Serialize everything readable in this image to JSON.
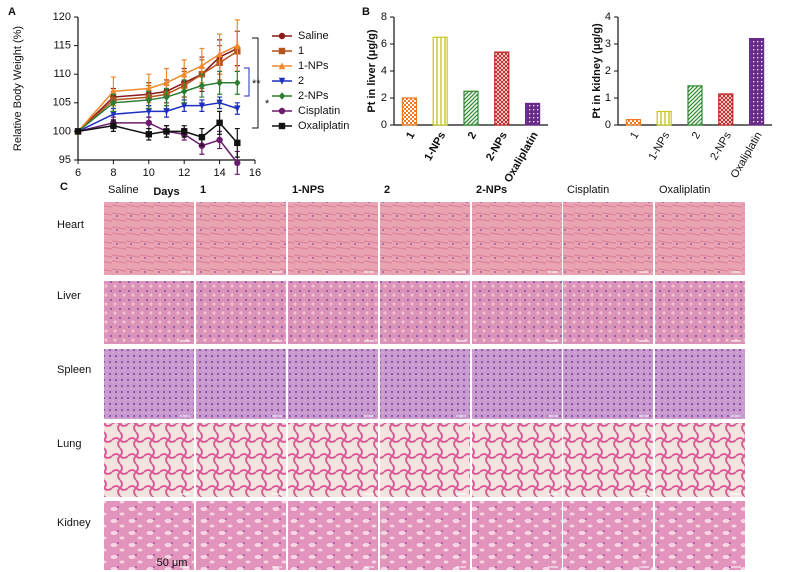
{
  "panel_labels": [
    "A",
    "B",
    "C"
  ],
  "chart_data": [
    {
      "type": "line",
      "xlabel": "Days",
      "ylabel": "Relative Body Weight (%)",
      "x": [
        6,
        8,
        10,
        11,
        12,
        13,
        14,
        15
      ],
      "xlim": [
        6,
        16
      ],
      "xticks": [
        6,
        8,
        10,
        12,
        14,
        16
      ],
      "ylim": [
        95,
        120
      ],
      "yticks": [
        95,
        100,
        105,
        110,
        115,
        120
      ],
      "series": [
        {
          "name": "Saline",
          "color": "#8b1a1a",
          "marker": "circle",
          "values": [
            100,
            106,
            106.5,
            107,
            108.5,
            110,
            113,
            114.5
          ],
          "errors": [
            0,
            1.5,
            2,
            2,
            2.5,
            3,
            3,
            3
          ]
        },
        {
          "name": "1",
          "color": "#b5541c",
          "marker": "square",
          "values": [
            100,
            105.5,
            106,
            106.5,
            108,
            110,
            112,
            114
          ],
          "errors": [
            0,
            1.5,
            2,
            2,
            2.5,
            2.5,
            3,
            3.5
          ]
        },
        {
          "name": "1-NPs",
          "color": "#f08a2a",
          "marker": "triangle-up",
          "values": [
            100,
            107,
            107.5,
            108.5,
            110,
            111.5,
            113.5,
            115
          ],
          "errors": [
            0,
            2.5,
            2.5,
            2.5,
            2.5,
            3,
            3.5,
            4.5
          ]
        },
        {
          "name": "2",
          "color": "#1f2fbf",
          "marker": "triangle-down",
          "values": [
            100,
            103,
            103.5,
            103.5,
            104.5,
            104.5,
            105,
            104
          ],
          "errors": [
            0,
            1,
            1,
            1,
            1,
            1,
            1,
            1
          ]
        },
        {
          "name": "2-NPs",
          "color": "#2e7d32",
          "marker": "diamond",
          "values": [
            100,
            105,
            105.5,
            106,
            107,
            108,
            108.5,
            108.5
          ],
          "errors": [
            0,
            1.5,
            1.5,
            1.5,
            2,
            2,
            2,
            2
          ]
        },
        {
          "name": "Cisplatin",
          "color": "#6a1b6a",
          "marker": "circle",
          "values": [
            100,
            101.5,
            101.5,
            100,
            99.5,
            97.5,
            98.5,
            94.5
          ],
          "errors": [
            0,
            1,
            1,
            1,
            1,
            1.5,
            1.5,
            2
          ]
        },
        {
          "name": "Oxaliplatin",
          "color": "#111111",
          "marker": "square",
          "values": [
            100,
            101,
            99.5,
            100,
            100,
            99,
            101.5,
            98
          ],
          "errors": [
            0,
            1,
            1,
            1,
            1,
            1.5,
            2,
            2.5
          ]
        }
      ],
      "annotations": [
        {
          "text": "**",
          "color": "#1f2fbf"
        },
        {
          "text": "*",
          "color": "#111111"
        }
      ]
    },
    {
      "type": "bar",
      "ylabel": "Pt in liver (μg/g)",
      "categories": [
        "1",
        "1-NPs",
        "2",
        "2-NPs",
        "Oxaliplatin"
      ],
      "values": [
        2.0,
        6.5,
        2.5,
        5.4,
        1.6
      ],
      "colors": [
        "#f07820",
        "#c8c820",
        "#2e8b2e",
        "#c02020",
        "#6a2a8a"
      ],
      "hatches": [
        "checker",
        "vertical",
        "diagonal",
        "cross",
        "dense"
      ],
      "ylim": [
        0,
        8
      ],
      "yticks": [
        0,
        2,
        4,
        6,
        8
      ],
      "label_weight": "bold"
    },
    {
      "type": "bar",
      "ylabel": "Pt in kidney (μg/g)",
      "categories": [
        "1",
        "1-NPs",
        "2",
        "2-NPs",
        "Oxaliplatin"
      ],
      "values": [
        0.2,
        0.5,
        1.45,
        1.15,
        3.2
      ],
      "colors": [
        "#f07820",
        "#c8c820",
        "#2e8b2e",
        "#c02020",
        "#6a2a8a"
      ],
      "hatches": [
        "checker",
        "vertical",
        "diagonal",
        "cross",
        "dense"
      ],
      "ylim": [
        0,
        4
      ],
      "yticks": [
        0,
        1,
        2,
        3,
        4
      ],
      "label_weight": "normal"
    }
  ],
  "histology": {
    "columns": [
      {
        "label": "Saline",
        "bold": false
      },
      {
        "label": "1",
        "bold": true
      },
      {
        "label": "1-NPS",
        "bold": true
      },
      {
        "label": "2",
        "bold": true
      },
      {
        "label": "2-NPs",
        "bold": true
      },
      {
        "label": "Cisplatin",
        "bold": false
      },
      {
        "label": "Oxaliplatin",
        "bold": false
      }
    ],
    "rows": [
      "Heart",
      "Liver",
      "Spleen",
      "Lung",
      "Kidney"
    ],
    "scale_bar": "50 μm"
  }
}
